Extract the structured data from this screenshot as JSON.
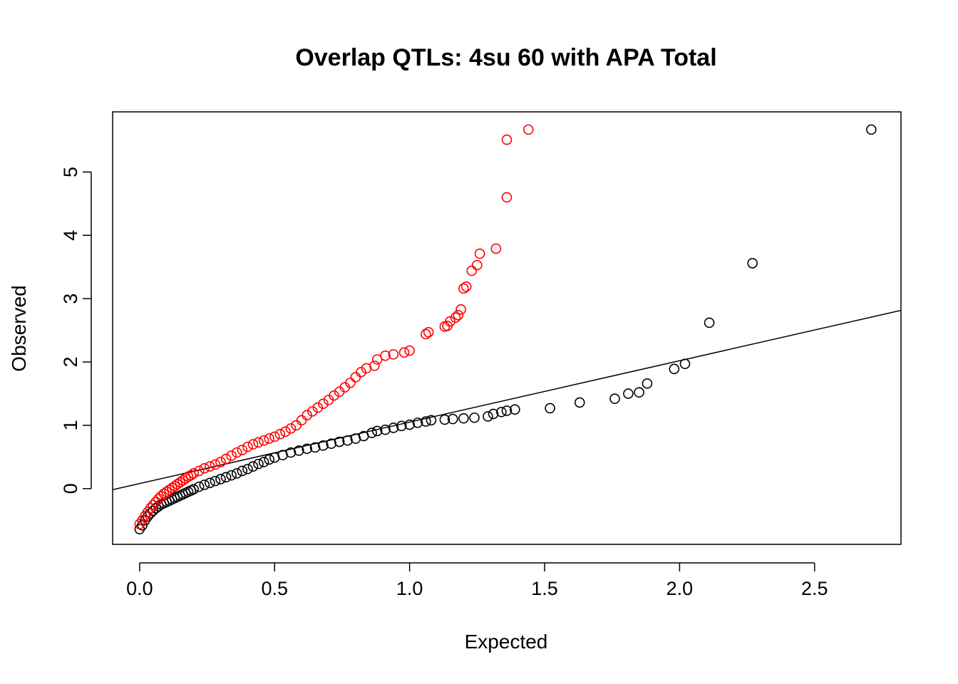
{
  "chart_data": {
    "type": "scatter",
    "title": "Overlap QTLs: 4su 60 with APA Total",
    "xlabel": "Expected",
    "ylabel": "Observed",
    "xlim": [
      -0.1,
      2.82
    ],
    "ylim": [
      -0.88,
      5.95
    ],
    "xticks": [
      0.0,
      0.5,
      1.0,
      1.5,
      2.0,
      2.5
    ],
    "xtick_labels": [
      "0.0",
      "0.5",
      "1.0",
      "1.5",
      "2.0",
      "2.5"
    ],
    "yticks": [
      0,
      1,
      2,
      3,
      4,
      5
    ],
    "ytick_labels": [
      "0",
      "1",
      "2",
      "3",
      "4",
      "5"
    ],
    "grid": false,
    "legend": "none",
    "reference_line": {
      "intercept": 0.08,
      "slope": 0.97,
      "color": "#000000"
    },
    "series": [
      {
        "color": "#000000",
        "marker": "open-circle",
        "x": [
          0.0,
          0.01,
          0.02,
          0.03,
          0.04,
          0.05,
          0.06,
          0.07,
          0.08,
          0.09,
          0.1,
          0.11,
          0.12,
          0.13,
          0.14,
          0.15,
          0.16,
          0.17,
          0.18,
          0.19,
          0.2,
          0.22,
          0.24,
          0.26,
          0.28,
          0.3,
          0.32,
          0.34,
          0.36,
          0.38,
          0.4,
          0.42,
          0.44,
          0.46,
          0.48,
          0.5,
          0.53,
          0.56,
          0.59,
          0.62,
          0.65,
          0.68,
          0.71,
          0.74,
          0.77,
          0.8,
          0.83,
          0.86,
          0.88,
          0.91,
          0.94,
          0.97,
          1.0,
          1.03,
          1.06,
          1.08,
          1.13,
          1.16,
          1.2,
          1.24,
          1.29,
          1.31,
          1.34,
          1.36,
          1.39,
          1.52,
          1.63,
          1.76,
          1.81,
          1.85,
          1.88,
          1.98,
          2.02,
          2.11,
          2.27,
          2.71
        ],
        "y": [
          -0.64,
          -0.58,
          -0.5,
          -0.44,
          -0.39,
          -0.35,
          -0.31,
          -0.28,
          -0.25,
          -0.23,
          -0.21,
          -0.19,
          -0.17,
          -0.15,
          -0.13,
          -0.11,
          -0.09,
          -0.07,
          -0.05,
          -0.03,
          -0.01,
          0.03,
          0.06,
          0.09,
          0.12,
          0.15,
          0.18,
          0.21,
          0.24,
          0.28,
          0.31,
          0.35,
          0.39,
          0.42,
          0.46,
          0.49,
          0.53,
          0.57,
          0.6,
          0.63,
          0.65,
          0.68,
          0.71,
          0.74,
          0.76,
          0.79,
          0.83,
          0.88,
          0.91,
          0.93,
          0.96,
          0.99,
          1.01,
          1.04,
          1.06,
          1.08,
          1.09,
          1.1,
          1.11,
          1.12,
          1.14,
          1.18,
          1.21,
          1.23,
          1.25,
          1.27,
          1.36,
          1.42,
          1.5,
          1.52,
          1.66,
          1.89,
          1.97,
          2.62,
          3.56,
          5.67
        ]
      },
      {
        "color": "#ff0000",
        "marker": "open-circle",
        "x": [
          0.0,
          0.01,
          0.02,
          0.03,
          0.04,
          0.05,
          0.06,
          0.07,
          0.08,
          0.09,
          0.1,
          0.11,
          0.12,
          0.13,
          0.14,
          0.15,
          0.16,
          0.17,
          0.18,
          0.19,
          0.2,
          0.22,
          0.24,
          0.26,
          0.28,
          0.3,
          0.32,
          0.34,
          0.36,
          0.38,
          0.4,
          0.42,
          0.44,
          0.46,
          0.48,
          0.5,
          0.52,
          0.54,
          0.56,
          0.58,
          0.6,
          0.62,
          0.64,
          0.66,
          0.68,
          0.7,
          0.72,
          0.74,
          0.76,
          0.78,
          0.8,
          0.82,
          0.84,
          0.87,
          0.88,
          0.91,
          0.94,
          0.98,
          1.0,
          1.06,
          1.07,
          1.13,
          1.14,
          1.15,
          1.17,
          1.18,
          1.19,
          1.2,
          1.21,
          1.23,
          1.25,
          1.26,
          1.32,
          1.36,
          1.36,
          1.44
        ],
        "y": [
          -0.56,
          -0.5,
          -0.43,
          -0.37,
          -0.31,
          -0.26,
          -0.21,
          -0.16,
          -0.12,
          -0.08,
          -0.05,
          -0.02,
          0.01,
          0.04,
          0.07,
          0.1,
          0.13,
          0.16,
          0.19,
          0.21,
          0.24,
          0.28,
          0.32,
          0.35,
          0.38,
          0.42,
          0.47,
          0.52,
          0.57,
          0.61,
          0.66,
          0.7,
          0.73,
          0.76,
          0.79,
          0.82,
          0.86,
          0.9,
          0.95,
          1.0,
          1.08,
          1.16,
          1.22,
          1.28,
          1.34,
          1.4,
          1.47,
          1.53,
          1.6,
          1.67,
          1.76,
          1.84,
          1.9,
          1.94,
          2.04,
          2.1,
          2.12,
          2.15,
          2.18,
          2.44,
          2.47,
          2.56,
          2.57,
          2.64,
          2.7,
          2.74,
          2.83,
          3.16,
          3.19,
          3.44,
          3.53,
          3.71,
          3.79,
          4.6,
          5.51,
          5.67
        ]
      }
    ]
  }
}
